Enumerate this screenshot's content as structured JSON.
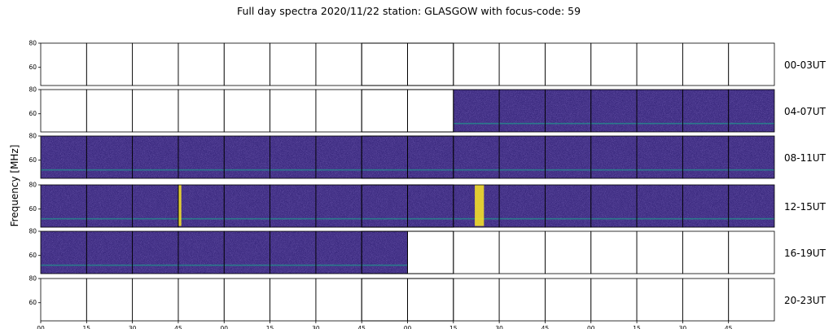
{
  "chart_data": {
    "type": "heatmap",
    "title": "Full day spectra 2020/11/22 station: GLASGOW with focus-code: 59",
    "ylabel": "Frequency [MHz]",
    "xlabel": "",
    "ylim": [
      45,
      80
    ],
    "yticks": [
      "80",
      "60"
    ],
    "xticks": [
      "00",
      "15",
      "30",
      "45",
      "00",
      "15",
      "30",
      "45",
      "00",
      "15",
      "30",
      "45",
      "00",
      "15",
      "30",
      "45"
    ],
    "rows": [
      {
        "label": "00-03UT",
        "data_start_min": null,
        "data_end_min": null
      },
      {
        "label": "04-07UT",
        "data_start_min": 135,
        "data_end_min": 240
      },
      {
        "label": "08-11UT",
        "data_start_min": 0,
        "data_end_min": 240
      },
      {
        "label": "12-15UT",
        "data_start_min": 0,
        "data_end_min": 240
      },
      {
        "label": "16-19UT",
        "data_start_min": 0,
        "data_end_min": 120
      },
      {
        "label": "20-23UT",
        "data_start_min": null,
        "data_end_min": null
      }
    ],
    "bursts": [
      {
        "row": "12-15UT",
        "start_min": 45,
        "end_min": 46,
        "freq_low": 46,
        "freq_high": 80
      },
      {
        "row": "12-15UT",
        "start_min": 142,
        "end_min": 145,
        "freq_low": 46,
        "freq_high": 80
      }
    ],
    "colormap": {
      "background": "#3b2a7f",
      "mid": "#21918c",
      "high": "#fde725"
    }
  }
}
